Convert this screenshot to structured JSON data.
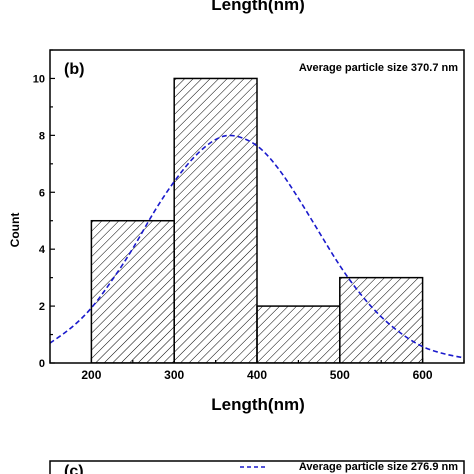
{
  "top_partial_title": "Length(nm)",
  "chart_data": {
    "type": "bar",
    "panel_label": "(b)",
    "annotation": "Average particle size 370.7 nm",
    "xlabel": "Length(nm)",
    "ylabel": "Count",
    "xlim": [
      150,
      650
    ],
    "ylim": [
      0,
      11
    ],
    "x_ticks": [
      200,
      300,
      400,
      500,
      600
    ],
    "y_ticks": [
      0,
      2,
      4,
      6,
      8,
      10
    ],
    "bins": [
      {
        "start": 200,
        "end": 300,
        "value": 5
      },
      {
        "start": 300,
        "end": 400,
        "value": 10
      },
      {
        "start": 400,
        "end": 500,
        "value": 2
      },
      {
        "start": 500,
        "end": 600,
        "value": 3
      }
    ],
    "fit_curve": {
      "style": "dashed",
      "color": "#1a1acc",
      "points": [
        [
          150,
          0.7
        ],
        [
          175,
          1.2
        ],
        [
          200,
          1.9
        ],
        [
          225,
          2.9
        ],
        [
          250,
          4.0
        ],
        [
          275,
          5.3
        ],
        [
          300,
          6.4
        ],
        [
          325,
          7.3
        ],
        [
          350,
          7.9
        ],
        [
          370.7,
          8.05
        ],
        [
          400,
          7.7
        ],
        [
          425,
          6.9
        ],
        [
          450,
          5.8
        ],
        [
          475,
          4.6
        ],
        [
          500,
          3.4
        ],
        [
          525,
          2.4
        ],
        [
          550,
          1.6
        ],
        [
          575,
          1.0
        ],
        [
          600,
          0.55
        ],
        [
          625,
          0.32
        ],
        [
          650,
          0.18
        ]
      ]
    }
  },
  "bottom_partial": {
    "panel_label": "(c)",
    "annotation": "Average particle size 276.9 nm"
  }
}
